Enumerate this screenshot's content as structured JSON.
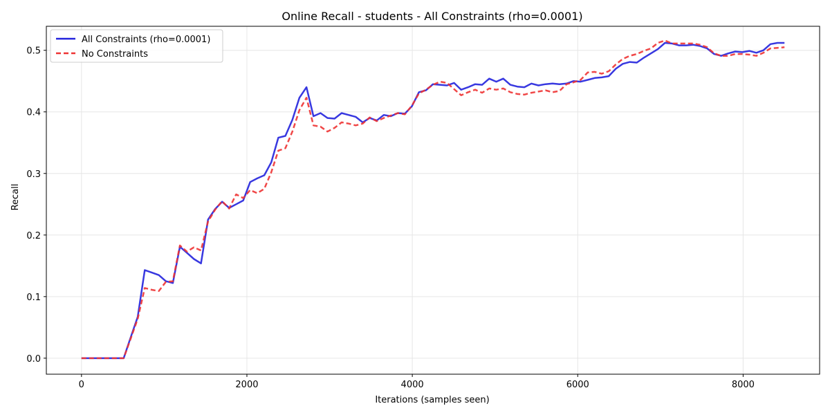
{
  "chart_data": {
    "type": "line",
    "title": "Online Recall - students - All Constraints (rho=0.0001)",
    "xlabel": "Iterations (samples seen)",
    "ylabel": "Recall",
    "xlim": [
      -425,
      8925
    ],
    "ylim": [
      -0.026,
      0.539
    ],
    "xticks": [
      0,
      2000,
      4000,
      6000,
      8000
    ],
    "xtick_labels": [
      "0",
      "2000",
      "4000",
      "6000",
      "8000"
    ],
    "yticks": [
      0.0,
      0.1,
      0.2,
      0.3,
      0.4,
      0.5
    ],
    "ytick_labels": [
      "0.0",
      "0.1",
      "0.2",
      "0.3",
      "0.4",
      "0.5"
    ],
    "grid": true,
    "legend_position": "top-left",
    "series": [
      {
        "name": "All Constraints (rho=0.0001)",
        "color": "#2222dd",
        "style": "solid",
        "x": [
          0,
          85,
          170,
          255,
          340,
          425,
          510,
          595,
          680,
          765,
          850,
          935,
          1020,
          1105,
          1190,
          1275,
          1360,
          1445,
          1530,
          1615,
          1700,
          1785,
          1870,
          1955,
          2040,
          2125,
          2210,
          2295,
          2380,
          2465,
          2550,
          2635,
          2720,
          2805,
          2890,
          2975,
          3060,
          3145,
          3230,
          3315,
          3400,
          3485,
          3570,
          3655,
          3740,
          3825,
          3910,
          3995,
          4080,
          4165,
          4250,
          4335,
          4420,
          4505,
          4590,
          4675,
          4760,
          4845,
          4930,
          5015,
          5100,
          5185,
          5270,
          5355,
          5440,
          5525,
          5610,
          5695,
          5780,
          5865,
          5950,
          6035,
          6120,
          6205,
          6290,
          6375,
          6460,
          6545,
          6630,
          6715,
          6800,
          6885,
          6970,
          7055,
          7140,
          7225,
          7310,
          7395,
          7480,
          7565,
          7650,
          7735,
          7820,
          7905,
          7990,
          8075,
          8160,
          8245,
          8330,
          8415,
          8500
        ],
        "values": [
          0.0,
          0.0,
          0.0,
          0.0,
          0.0,
          0.0,
          0.0,
          0.034,
          0.067,
          0.143,
          0.139,
          0.135,
          0.125,
          0.122,
          0.181,
          0.171,
          0.161,
          0.154,
          0.225,
          0.242,
          0.254,
          0.244,
          0.25,
          0.256,
          0.286,
          0.292,
          0.297,
          0.318,
          0.358,
          0.361,
          0.387,
          0.423,
          0.44,
          0.393,
          0.398,
          0.39,
          0.389,
          0.398,
          0.395,
          0.392,
          0.383,
          0.39,
          0.386,
          0.395,
          0.393,
          0.398,
          0.397,
          0.409,
          0.432,
          0.435,
          0.445,
          0.444,
          0.443,
          0.447,
          0.436,
          0.44,
          0.445,
          0.444,
          0.454,
          0.449,
          0.454,
          0.444,
          0.441,
          0.44,
          0.446,
          0.443,
          0.445,
          0.446,
          0.445,
          0.446,
          0.45,
          0.449,
          0.452,
          0.455,
          0.456,
          0.458,
          0.47,
          0.478,
          0.481,
          0.48,
          0.488,
          0.495,
          0.502,
          0.512,
          0.511,
          0.508,
          0.508,
          0.509,
          0.507,
          0.503,
          0.494,
          0.491,
          0.495,
          0.498,
          0.497,
          0.499,
          0.496,
          0.5,
          0.51,
          0.512,
          0.512
        ]
      },
      {
        "name": "No Constraints",
        "color": "#ee3333",
        "style": "dashed",
        "x": [
          0,
          85,
          170,
          255,
          340,
          425,
          510,
          595,
          680,
          765,
          850,
          935,
          1020,
          1105,
          1190,
          1275,
          1360,
          1445,
          1530,
          1615,
          1700,
          1785,
          1870,
          1955,
          2040,
          2125,
          2210,
          2295,
          2380,
          2465,
          2550,
          2635,
          2720,
          2805,
          2890,
          2975,
          3060,
          3145,
          3230,
          3315,
          3400,
          3485,
          3570,
          3655,
          3740,
          3825,
          3910,
          3995,
          4080,
          4165,
          4250,
          4335,
          4420,
          4505,
          4590,
          4675,
          4760,
          4845,
          4930,
          5015,
          5100,
          5185,
          5270,
          5355,
          5440,
          5525,
          5610,
          5695,
          5780,
          5865,
          5950,
          6035,
          6120,
          6205,
          6290,
          6375,
          6460,
          6545,
          6630,
          6715,
          6800,
          6885,
          6970,
          7055,
          7140,
          7225,
          7310,
          7395,
          7480,
          7565,
          7650,
          7735,
          7820,
          7905,
          7990,
          8075,
          8160,
          8245,
          8330,
          8415,
          8500
        ],
        "values": [
          0.0,
          0.0,
          0.0,
          0.0,
          0.0,
          0.0,
          0.0,
          0.032,
          0.064,
          0.114,
          0.111,
          0.109,
          0.124,
          0.125,
          0.183,
          0.173,
          0.18,
          0.175,
          0.222,
          0.241,
          0.255,
          0.243,
          0.266,
          0.26,
          0.273,
          0.268,
          0.275,
          0.302,
          0.337,
          0.341,
          0.368,
          0.403,
          0.423,
          0.378,
          0.376,
          0.368,
          0.374,
          0.383,
          0.381,
          0.378,
          0.381,
          0.391,
          0.385,
          0.39,
          0.394,
          0.398,
          0.396,
          0.41,
          0.43,
          0.436,
          0.444,
          0.449,
          0.447,
          0.437,
          0.427,
          0.432,
          0.436,
          0.431,
          0.438,
          0.436,
          0.438,
          0.432,
          0.429,
          0.428,
          0.431,
          0.433,
          0.435,
          0.432,
          0.434,
          0.445,
          0.448,
          0.452,
          0.464,
          0.465,
          0.462,
          0.466,
          0.477,
          0.486,
          0.491,
          0.494,
          0.499,
          0.503,
          0.512,
          0.516,
          0.511,
          0.511,
          0.511,
          0.511,
          0.509,
          0.505,
          0.495,
          0.491,
          0.491,
          0.494,
          0.494,
          0.493,
          0.491,
          0.496,
          0.503,
          0.504,
          0.505
        ]
      }
    ]
  }
}
